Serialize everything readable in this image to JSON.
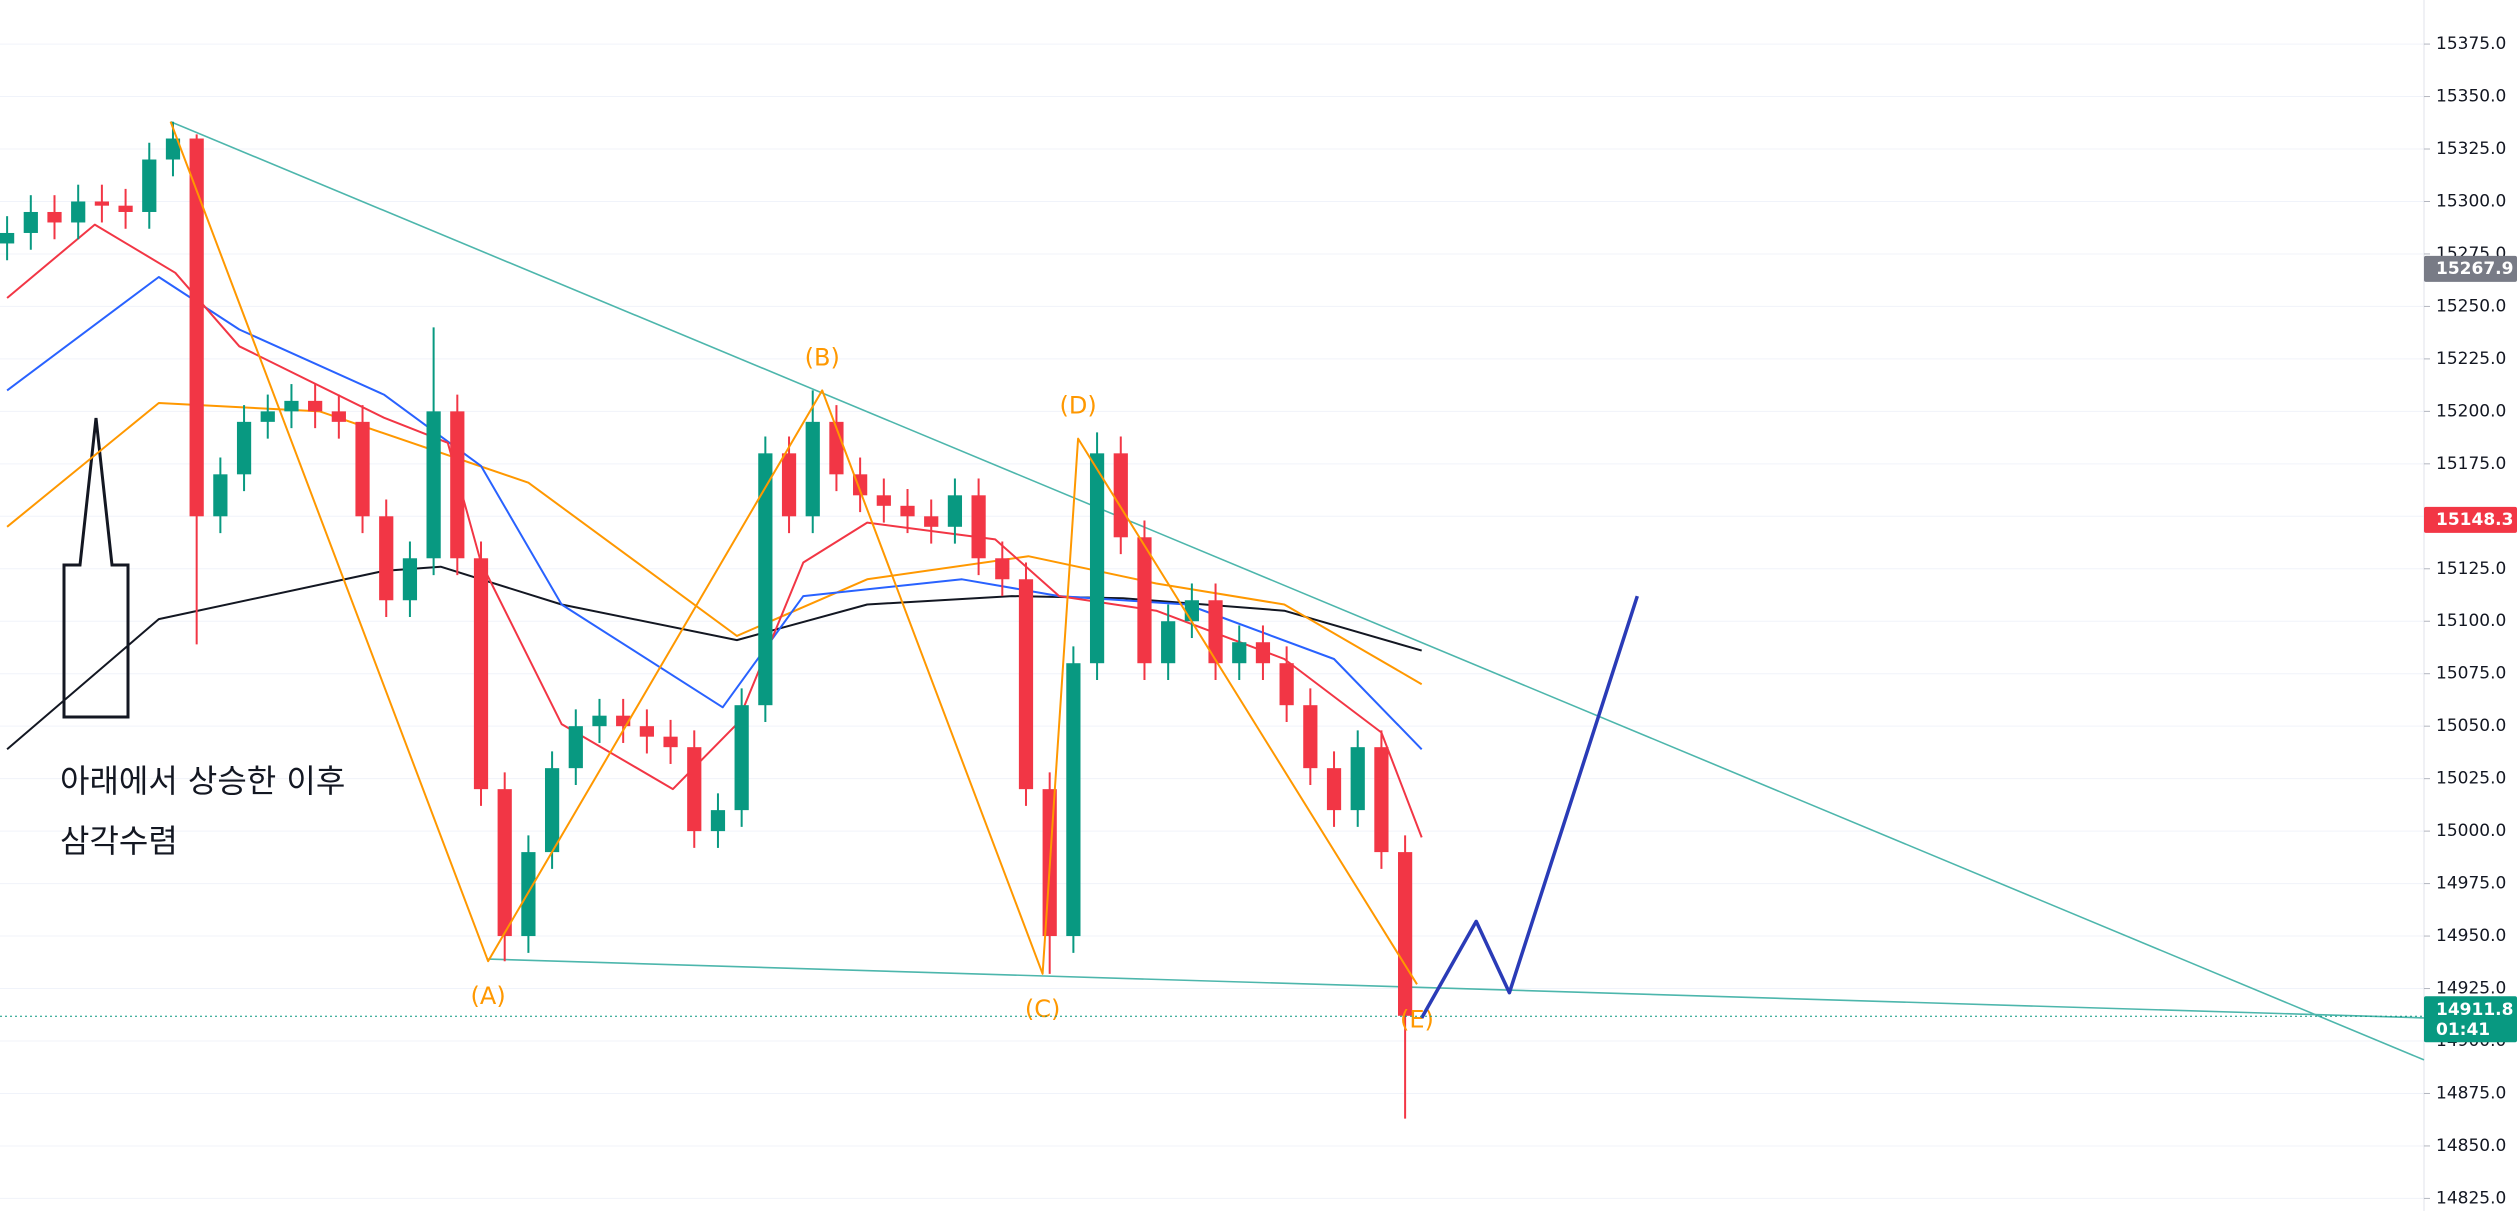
{
  "chart_data": {
    "type": "candlestick",
    "x": [
      0,
      1,
      2,
      3,
      4,
      5,
      6,
      7,
      8,
      9,
      10,
      11,
      12,
      13,
      14,
      15,
      16,
      17,
      18,
      19,
      20,
      21,
      22,
      23,
      24,
      25,
      26,
      27,
      28,
      29,
      30,
      31,
      32,
      33,
      34,
      35,
      36,
      37,
      38,
      39,
      40,
      41,
      42,
      43,
      44,
      45,
      46,
      47,
      48,
      49,
      50,
      51,
      52,
      53,
      54,
      55,
      56,
      57,
      58,
      59
    ],
    "open": [
      15280,
      15285,
      15295,
      15290,
      15300,
      15298,
      15295,
      15320,
      15330,
      15150,
      15170,
      15195,
      15200,
      15205,
      15200,
      15195,
      15150,
      15110,
      15130,
      15200,
      15130,
      15020,
      14950,
      14990,
      15030,
      15050,
      15055,
      15050,
      15045,
      15040,
      15000,
      15010,
      15060,
      15180,
      15150,
      15195,
      15170,
      15160,
      15155,
      15150,
      15145,
      15160,
      15130,
      15120,
      15020,
      14950,
      15080,
      15180,
      15140,
      15080,
      15100,
      15110,
      15080,
      15090,
      15080,
      15060,
      15030,
      15010,
      15040,
      14990
    ],
    "high": [
      15293,
      15303,
      15303,
      15308,
      15308,
      15306,
      15328,
      15338,
      15332,
      15178,
      15203,
      15208,
      15213,
      15213,
      15208,
      15203,
      15158,
      15138,
      15240,
      15208,
      15138,
      15028,
      14998,
      15038,
      15058,
      15063,
      15063,
      15058,
      15053,
      15048,
      15018,
      15068,
      15188,
      15188,
      15210,
      15203,
      15178,
      15168,
      15163,
      15158,
      15168,
      15168,
      15138,
      15128,
      15028,
      15088,
      15190,
      15188,
      15148,
      15108,
      15118,
      15118,
      15098,
      15098,
      15088,
      15068,
      15038,
      15048,
      15048,
      14998
    ],
    "low": [
      15272,
      15277,
      15282,
      15282,
      15290,
      15287,
      15287,
      15312,
      15089,
      15142,
      15162,
      15187,
      15192,
      15192,
      15187,
      15142,
      15102,
      15102,
      15122,
      15122,
      15012,
      14938,
      14942,
      14982,
      15022,
      15042,
      15042,
      15037,
      15032,
      14992,
      14992,
      15002,
      15052,
      15142,
      15142,
      15162,
      15152,
      15147,
      15142,
      15137,
      15137,
      15122,
      15112,
      15012,
      14932,
      14942,
      15072,
      15132,
      15072,
      15072,
      15092,
      15072,
      15072,
      15072,
      15052,
      15022,
      15002,
      15002,
      14982,
      14863
    ],
    "close": [
      15285,
      15295,
      15290,
      15300,
      15298,
      15295,
      15320,
      15330,
      15150,
      15170,
      15195,
      15200,
      15205,
      15200,
      15195,
      15150,
      15110,
      15130,
      15200,
      15130,
      15020,
      14950,
      14990,
      15030,
      15050,
      15055,
      15050,
      15045,
      15040,
      15000,
      15010,
      15060,
      15180,
      15150,
      15195,
      15170,
      15160,
      15155,
      15150,
      15145,
      15160,
      15130,
      15120,
      15020,
      14950,
      15080,
      15180,
      15140,
      15080,
      15100,
      15110,
      15080,
      15090,
      15080,
      15060,
      15030,
      15010,
      15040,
      14990,
      14912
    ],
    "up_color": "#089981",
    "down_color": "#f23645",
    "xlim": [
      -0.3,
      102
    ],
    "ylim": [
      14819,
      15396
    ],
    "grid": true,
    "yticks": [
      {
        "value": 14825,
        "label": "14825.0"
      },
      {
        "value": 14850,
        "label": "14850.0"
      },
      {
        "value": 14875,
        "label": "14875.0"
      },
      {
        "value": 14900,
        "label": "14900.0"
      },
      {
        "value": 14925,
        "label": "14925.0"
      },
      {
        "value": 14950,
        "label": "14950.0"
      },
      {
        "value": 14975,
        "label": "14975.0"
      },
      {
        "value": 15000,
        "label": "15000.0"
      },
      {
        "value": 15025,
        "label": "15025.0"
      },
      {
        "value": 15050,
        "label": "15050.0"
      },
      {
        "value": 15075,
        "label": "15075.0"
      },
      {
        "value": 15100,
        "label": "15100.0"
      },
      {
        "value": 15125,
        "label": "15125.0"
      },
      {
        "value": 15150,
        "label": "15150.0"
      },
      {
        "value": 15175,
        "label": "15175.0"
      },
      {
        "value": 15200,
        "label": "15200.0"
      },
      {
        "value": 15225,
        "label": "15225.0"
      },
      {
        "value": 15250,
        "label": "15250.0"
      },
      {
        "value": 15275,
        "label": "15275.0"
      },
      {
        "value": 15300,
        "label": "15300.0"
      },
      {
        "value": 15325,
        "label": "15325.0"
      },
      {
        "value": 15350,
        "label": "15350.0"
      },
      {
        "value": 15375,
        "label": "15375.0"
      }
    ],
    "moving_averages": [
      {
        "color": "#131722",
        "x": [
          0,
          6.4,
          15.9,
          18.3,
          23.4,
          30.8,
          36.3,
          42.4,
          47.1,
          53.9,
          59.7
        ],
        "values": [
          15039,
          15101,
          15124,
          15126,
          15108,
          15091,
          15108,
          15112,
          15111,
          15105,
          15086
        ]
      },
      {
        "color": "#ff9800",
        "x": [
          0,
          6.4,
          13.2,
          22,
          30.8,
          36.3,
          43.1,
          48.5,
          53.9,
          59.7
        ],
        "values": [
          15145,
          15204,
          15200,
          15166,
          15093,
          15120,
          15131,
          15118,
          15108,
          15070
        ]
      },
      {
        "color": "#2962ff",
        "x": [
          0,
          6.4,
          9.8,
          15.9,
          20,
          23.4,
          30.2,
          33.6,
          40.3,
          44.4,
          49.8,
          56,
          59.7
        ],
        "values": [
          15210,
          15264,
          15239,
          15208,
          15174,
          15108,
          15059,
          15112,
          15120,
          15112,
          15108,
          15082,
          15039
        ]
      },
      {
        "color": "#f23645",
        "x": [
          0,
          3.7,
          7.1,
          9.8,
          15.9,
          18.6,
          20,
          23.4,
          28.1,
          30.8,
          33.6,
          36.3,
          41.7,
          44.4,
          48.5,
          53.9,
          58,
          59.7
        ],
        "values": [
          15254,
          15289,
          15266,
          15231,
          15197,
          15185,
          15128,
          15051,
          15020,
          15051,
          15128,
          15147,
          15139,
          15112,
          15105,
          15082,
          15047,
          14997
        ]
      }
    ],
    "trendlines": [
      {
        "color": "#4db6ac",
        "x": [
          6.9,
          102
        ],
        "values": [
          15338,
          14891
        ]
      },
      {
        "color": "#4db6ac",
        "x": [
          20.3,
          102
        ],
        "values": [
          14939,
          14911
        ]
      }
    ],
    "waves": {
      "color": "#ff9800",
      "labels": [
        null,
        "(A)",
        "(B)",
        "(C)",
        "(D)",
        "(E)"
      ],
      "x": [
        6.9,
        20.3,
        34.4,
        43.7,
        45.2,
        59.5
      ],
      "values": [
        15338,
        14938,
        15210,
        14932,
        15187,
        14927
      ]
    },
    "projection": {
      "color": "#2a3bb7",
      "x": [
        59.7,
        62,
        63.4,
        68.8
      ],
      "values": [
        14911,
        14957,
        14923,
        15112
      ]
    },
    "annotations": [
      "아래에서 상승한 이후",
      "삼각수렴"
    ],
    "price_labels": [
      {
        "value": 15267.9,
        "label": "15267.9",
        "color": "#787b86"
      },
      {
        "value": 15148.3,
        "label": "15148.3",
        "color": "#f23645"
      }
    ],
    "last_price": {
      "value": 14911.8,
      "label": "14911.8",
      "countdown": "01:41",
      "color": "#089981"
    }
  }
}
